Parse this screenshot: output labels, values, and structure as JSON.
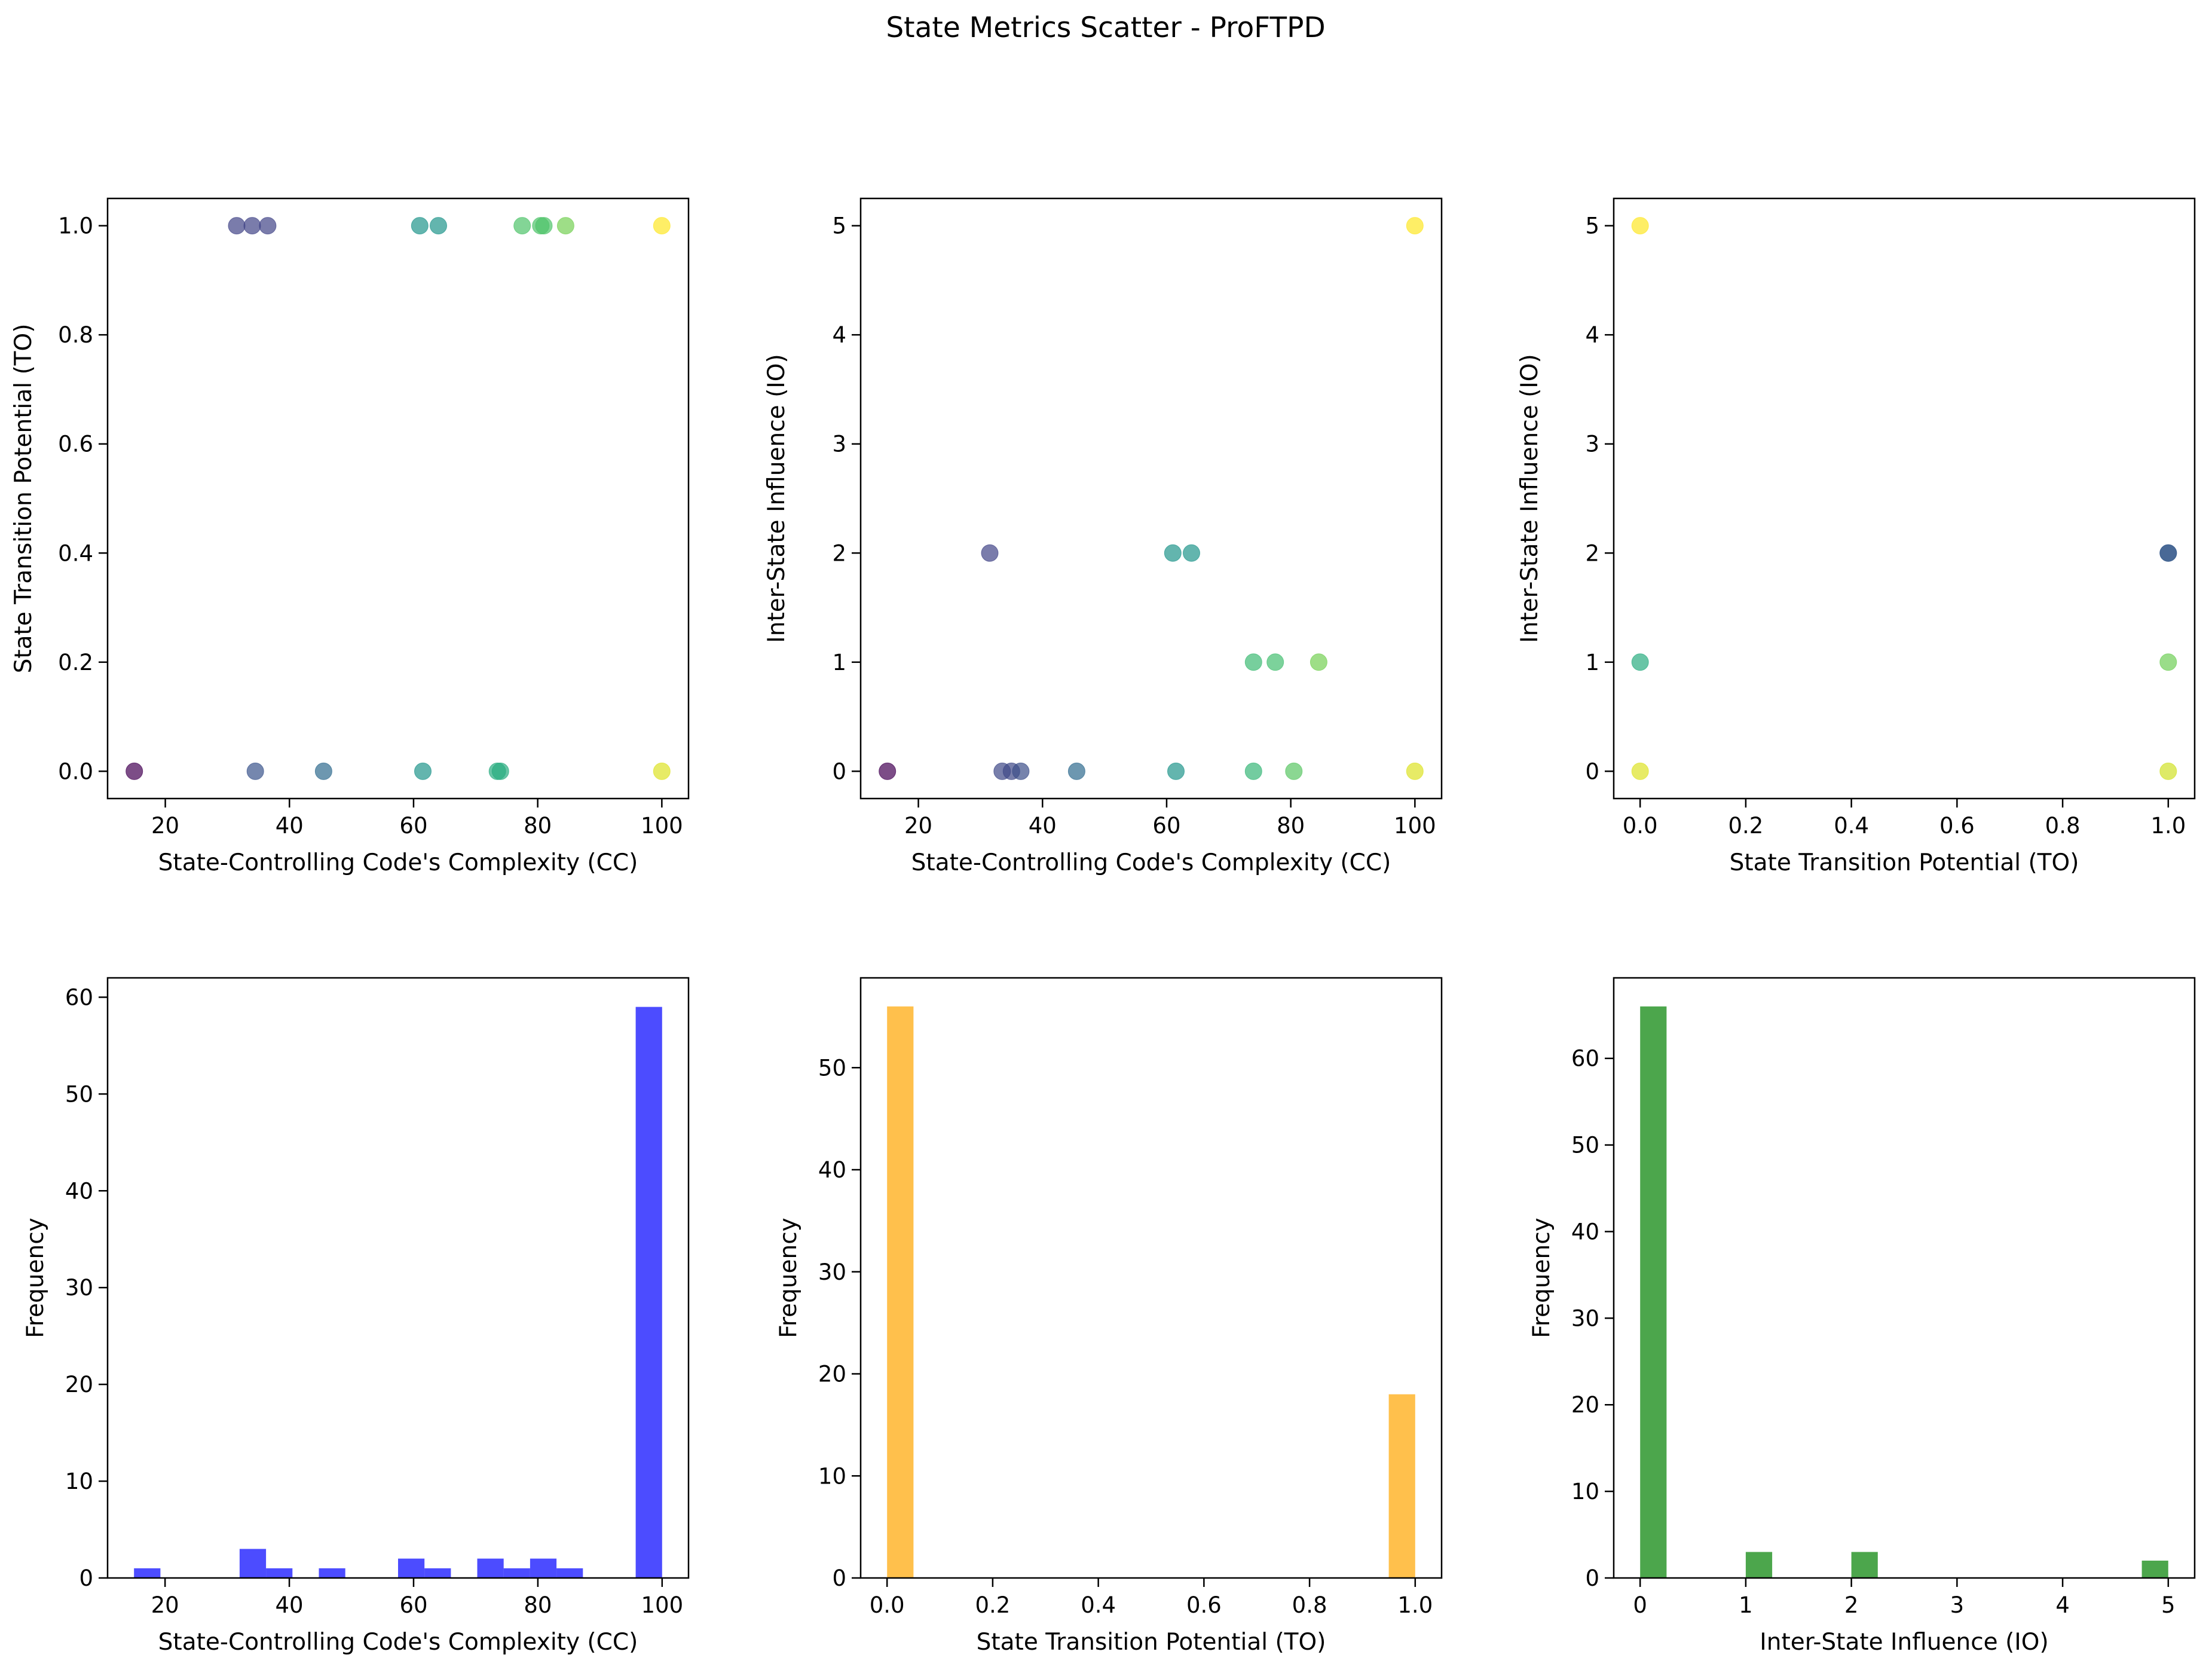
{
  "figure": {
    "title": "State Metrics Scatter - ProFTPD"
  },
  "chart_data": [
    {
      "type": "scatter",
      "xlabel": "State-Controlling Code's Complexity (CC)",
      "ylabel": "State Transition Potential (TO)",
      "xlim": [
        10.7,
        104.3
      ],
      "ylim": [
        -0.05,
        1.05
      ],
      "xticks": [
        20,
        40,
        60,
        80,
        100
      ],
      "yticks": [
        0.0,
        0.2,
        0.4,
        0.6,
        0.8,
        1.0
      ],
      "xtick_labels": [
        "20",
        "40",
        "60",
        "80",
        "100"
      ],
      "ytick_labels": [
        "0.0",
        "0.2",
        "0.4",
        "0.6",
        "0.8",
        "1.0"
      ],
      "colormap": "viridis",
      "points": [
        {
          "x": 15,
          "y": 0,
          "c": 0.0
        },
        {
          "x": 31.5,
          "y": 1,
          "c": 0.2
        },
        {
          "x": 34,
          "y": 1,
          "c": 0.2
        },
        {
          "x": 36.5,
          "y": 1,
          "c": 0.2
        },
        {
          "x": 34.5,
          "y": 0,
          "c": 0.26
        },
        {
          "x": 45.5,
          "y": 0,
          "c": 0.35
        },
        {
          "x": 61,
          "y": 1,
          "c": 0.52
        },
        {
          "x": 64,
          "y": 1,
          "c": 0.52
        },
        {
          "x": 61.5,
          "y": 0,
          "c": 0.52
        },
        {
          "x": 73.5,
          "y": 0,
          "c": 0.62
        },
        {
          "x": 74,
          "y": 0,
          "c": 0.62
        },
        {
          "x": 77.5,
          "y": 1,
          "c": 0.72
        },
        {
          "x": 80.5,
          "y": 1,
          "c": 0.72
        },
        {
          "x": 81,
          "y": 1,
          "c": 0.72
        },
        {
          "x": 84.5,
          "y": 1,
          "c": 0.79
        },
        {
          "x": 100,
          "y": 1,
          "c": 1.0
        },
        {
          "x": 100,
          "y": 0,
          "c": 0.95
        }
      ]
    },
    {
      "type": "scatter",
      "xlabel": "State-Controlling Code's Complexity (CC)",
      "ylabel": "Inter-State Influence (IO)",
      "xlim": [
        10.7,
        104.3
      ],
      "ylim": [
        -0.25,
        5.25
      ],
      "xticks": [
        20,
        40,
        60,
        80,
        100
      ],
      "yticks": [
        0,
        1,
        2,
        3,
        4,
        5
      ],
      "xtick_labels": [
        "20",
        "40",
        "60",
        "80",
        "100"
      ],
      "ytick_labels": [
        "0",
        "1",
        "2",
        "3",
        "4",
        "5"
      ],
      "colormap": "viridis",
      "points": [
        {
          "x": 15,
          "y": 0,
          "c": 0.0
        },
        {
          "x": 31.5,
          "y": 2,
          "c": 0.2
        },
        {
          "x": 33.5,
          "y": 0,
          "c": 0.22
        },
        {
          "x": 35,
          "y": 0,
          "c": 0.22
        },
        {
          "x": 36.5,
          "y": 0,
          "c": 0.24
        },
        {
          "x": 45.5,
          "y": 0,
          "c": 0.35
        },
        {
          "x": 61,
          "y": 2,
          "c": 0.52
        },
        {
          "x": 64,
          "y": 2,
          "c": 0.52
        },
        {
          "x": 61.5,
          "y": 0,
          "c": 0.52
        },
        {
          "x": 74,
          "y": 1,
          "c": 0.68
        },
        {
          "x": 77.5,
          "y": 1,
          "c": 0.7
        },
        {
          "x": 84.5,
          "y": 1,
          "c": 0.79
        },
        {
          "x": 74,
          "y": 0,
          "c": 0.66
        },
        {
          "x": 80.5,
          "y": 0,
          "c": 0.74
        },
        {
          "x": 100,
          "y": 5,
          "c": 1.0
        },
        {
          "x": 100,
          "y": 0,
          "c": 0.95
        }
      ]
    },
    {
      "type": "scatter",
      "xlabel": "State Transition Potential (TO)",
      "ylabel": "Inter-State Influence (IO)",
      "xlim": [
        -0.05,
        1.05
      ],
      "ylim": [
        -0.25,
        5.25
      ],
      "xticks": [
        0.0,
        0.2,
        0.4,
        0.6,
        0.8,
        1.0
      ],
      "yticks": [
        0,
        1,
        2,
        3,
        4,
        5
      ],
      "xtick_labels": [
        "0.0",
        "0.2",
        "0.4",
        "0.6",
        "0.8",
        "1.0"
      ],
      "ytick_labels": [
        "0",
        "1",
        "2",
        "3",
        "4",
        "5"
      ],
      "colormap": "viridis",
      "points": [
        {
          "x": 0,
          "y": 5,
          "c": 1.0
        },
        {
          "x": 0,
          "y": 1,
          "c": 0.62
        },
        {
          "x": 0,
          "y": 0,
          "c": 0.95
        },
        {
          "x": 1,
          "y": 2,
          "c": 0.22
        },
        {
          "x": 1,
          "y": 2,
          "c": 0.3
        },
        {
          "x": 1,
          "y": 1,
          "c": 0.78
        },
        {
          "x": 1,
          "y": 0,
          "c": 0.93
        }
      ]
    },
    {
      "type": "histogram",
      "xlabel": "State-Controlling Code's Complexity (CC)",
      "ylabel": "Frequency",
      "xlim": [
        10.75,
        104.25
      ],
      "ylim": [
        0,
        62
      ],
      "xticks": [
        20,
        40,
        60,
        80,
        100
      ],
      "yticks": [
        0,
        10,
        20,
        30,
        40,
        50,
        60
      ],
      "xtick_labels": [
        "20",
        "40",
        "60",
        "80",
        "100"
      ],
      "ytick_labels": [
        "0",
        "10",
        "20",
        "30",
        "40",
        "50",
        "60"
      ],
      "color": "#0000ff",
      "alpha": 0.7,
      "bin_edges": [
        15,
        19.25,
        23.5,
        27.75,
        32,
        36.25,
        40.5,
        44.75,
        49,
        53.25,
        57.5,
        61.75,
        66,
        70.25,
        74.5,
        78.75,
        83,
        87.25,
        91.5,
        95.75,
        100
      ],
      "counts": [
        1,
        0,
        0,
        0,
        3,
        1,
        0,
        1,
        0,
        0,
        2,
        1,
        0,
        2,
        1,
        2,
        1,
        0,
        0,
        59
      ]
    },
    {
      "type": "histogram",
      "xlabel": "State Transition Potential (TO)",
      "ylabel": "Frequency",
      "xlim": [
        -0.05,
        1.05
      ],
      "ylim": [
        0,
        58.8
      ],
      "xticks": [
        0.0,
        0.2,
        0.4,
        0.6,
        0.8,
        1.0
      ],
      "yticks": [
        0,
        10,
        20,
        30,
        40,
        50
      ],
      "xtick_labels": [
        "0.0",
        "0.2",
        "0.4",
        "0.6",
        "0.8",
        "1.0"
      ],
      "ytick_labels": [
        "0",
        "10",
        "20",
        "30",
        "40",
        "50"
      ],
      "color": "#ffa500",
      "alpha": 0.7,
      "bin_edges": [
        0,
        0.05,
        0.1,
        0.15,
        0.2,
        0.25,
        0.3,
        0.35,
        0.4,
        0.45,
        0.5,
        0.55,
        0.6,
        0.65,
        0.7,
        0.75,
        0.8,
        0.85,
        0.9,
        0.95,
        1.0
      ],
      "counts": [
        56,
        0,
        0,
        0,
        0,
        0,
        0,
        0,
        0,
        0,
        0,
        0,
        0,
        0,
        0,
        0,
        0,
        0,
        0,
        18
      ]
    },
    {
      "type": "histogram",
      "xlabel": "Inter-State Influence (IO)",
      "ylabel": "Frequency",
      "xlim": [
        -0.25,
        5.25
      ],
      "ylim": [
        0,
        69.3
      ],
      "xticks": [
        0,
        1,
        2,
        3,
        4,
        5
      ],
      "yticks": [
        0,
        10,
        20,
        30,
        40,
        50,
        60
      ],
      "xtick_labels": [
        "0",
        "1",
        "2",
        "3",
        "4",
        "5"
      ],
      "ytick_labels": [
        "0",
        "10",
        "20",
        "30",
        "40",
        "50",
        "60"
      ],
      "color": "#008000",
      "alpha": 0.7,
      "bin_edges": [
        0,
        0.25,
        0.5,
        0.75,
        1.0,
        1.25,
        1.5,
        1.75,
        2.0,
        2.25,
        2.5,
        2.75,
        3.0,
        3.25,
        3.5,
        3.75,
        4.0,
        4.25,
        4.5,
        4.75,
        5.0
      ],
      "counts": [
        66,
        0,
        0,
        0,
        3,
        0,
        0,
        0,
        3,
        0,
        0,
        0,
        0,
        0,
        0,
        0,
        0,
        0,
        0,
        2
      ]
    }
  ]
}
